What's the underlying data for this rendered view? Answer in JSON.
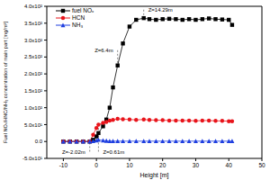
{
  "chart_data": {
    "type": "line",
    "x_label": "Height [m]",
    "y_label": "Fuel NOₓ/HNC/NH₃ concentration of main part [mg/m³]",
    "x": [
      -10,
      -8,
      -6,
      -4,
      -2.02,
      -1,
      0,
      0.61,
      2,
      3,
      4,
      5,
      6.4,
      8,
      10,
      12,
      14.29,
      16,
      18,
      20,
      22,
      24,
      26,
      28,
      30,
      32,
      34,
      36,
      38,
      40,
      41
    ],
    "series": [
      {
        "name": "fuel NOₓ",
        "color": "#000000",
        "marker": "square",
        "values": [
          0,
          0,
          0,
          0,
          0,
          5,
          15,
          25,
          45,
          65,
          100,
          160,
          225,
          290,
          340,
          360,
          365,
          362,
          360,
          362,
          363,
          362,
          360,
          362,
          360,
          362,
          364,
          362,
          361,
          360,
          345
        ]
      },
      {
        "name": "HCN",
        "color": "#e8141b",
        "marker": "circle",
        "values": [
          0,
          0,
          0,
          0,
          0,
          20,
          40,
          50,
          55,
          58,
          62,
          64,
          67,
          66,
          65,
          64,
          65,
          64,
          63,
          63,
          62,
          62,
          62,
          62,
          61,
          62,
          62,
          61,
          61,
          60,
          60
        ]
      },
      {
        "name": "NH₃",
        "color": "#1f3fe0",
        "marker": "triangle",
        "values": [
          0,
          0,
          0,
          0,
          0,
          1,
          3,
          5,
          3,
          2,
          1,
          1,
          1,
          1,
          1,
          1,
          1,
          1,
          1,
          1,
          1,
          1,
          1,
          1,
          1,
          1,
          1,
          1,
          1,
          1,
          1
        ]
      }
    ],
    "xlim": [
      -15,
      50
    ],
    "xticks": [
      -10,
      0,
      10,
      20,
      30,
      40,
      50
    ],
    "ylim": [
      -50,
      400
    ],
    "yticks": [
      {
        "value": -50,
        "label": "-5.0x10¹"
      },
      {
        "value": 0,
        "label": "0.0"
      },
      {
        "value": 50,
        "label": "5.0x10¹"
      },
      {
        "value": 100,
        "label": "1.0x10²"
      },
      {
        "value": 150,
        "label": "1.5x10²"
      },
      {
        "value": 200,
        "label": "2.0x10²"
      },
      {
        "value": 250,
        "label": "2.5x10²"
      },
      {
        "value": 300,
        "label": "3.0x10²"
      },
      {
        "value": 350,
        "label": "3.5x10²"
      },
      {
        "value": 400,
        "label": "4.0x10²"
      }
    ],
    "legend": "upper left",
    "annotations": [
      {
        "text": "Z=-2.02m",
        "x": -2.02,
        "y": -30
      },
      {
        "text": "Z=0.61m",
        "x": 0.61,
        "y": -30
      },
      {
        "text": "Z=6.4m",
        "x": 6.4,
        "y": 270
      },
      {
        "text": "Z=14.29m",
        "x": 14.29,
        "y": 390
      }
    ]
  }
}
